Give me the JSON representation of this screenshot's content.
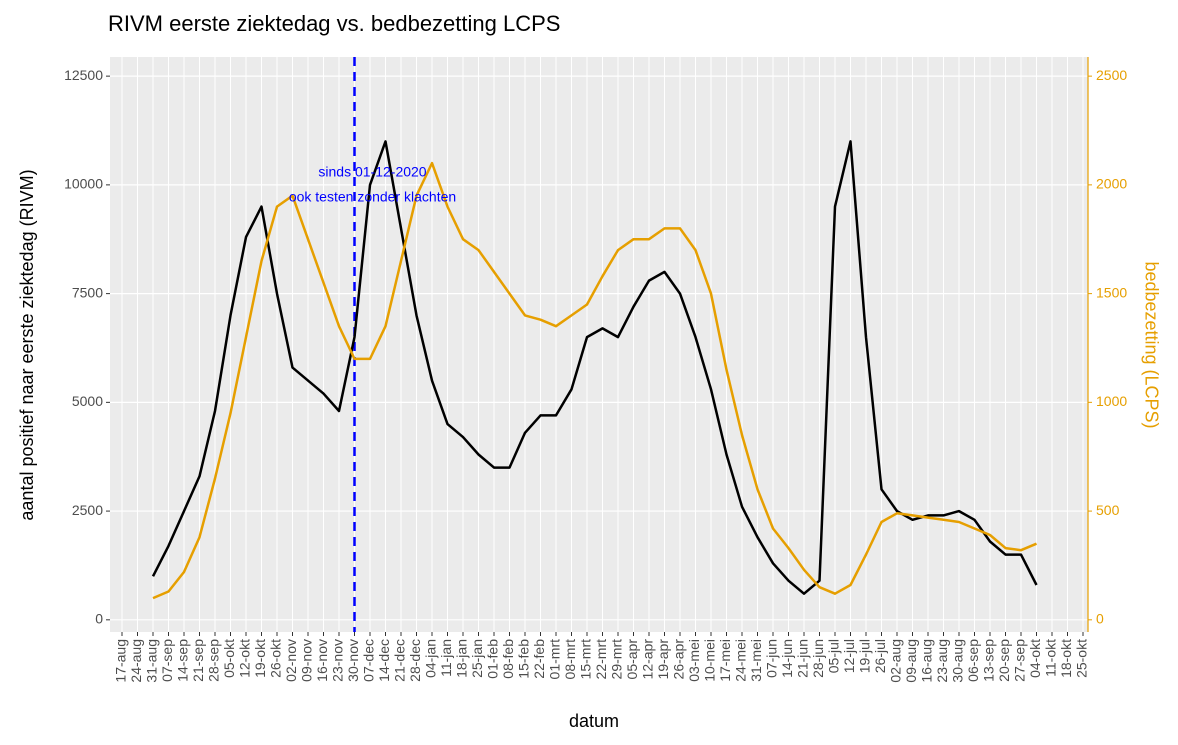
{
  "chart_data": {
    "type": "line",
    "title": "RIVM eerste ziektedag vs. bedbezetting LCPS",
    "x_label": "datum",
    "y_label": "aantal positief naar eerste ziektedag (RIVM)",
    "y2_label": "bedbezetting (LCPS)",
    "categories": [
      "17-aug",
      "24-aug",
      "31-aug",
      "07-sep",
      "14-sep",
      "21-sep",
      "28-sep",
      "05-okt",
      "12-okt",
      "19-okt",
      "26-okt",
      "02-nov",
      "09-nov",
      "16-nov",
      "23-nov",
      "30-nov",
      "07-dec",
      "14-dec",
      "21-dec",
      "28-dec",
      "04-jan",
      "11-jan",
      "18-jan",
      "25-jan",
      "01-feb",
      "08-feb",
      "15-feb",
      "22-feb",
      "01-mrt",
      "08-mrt",
      "15-mrt",
      "22-mrt",
      "29-mrt",
      "05-apr",
      "12-apr",
      "19-apr",
      "26-apr",
      "03-mei",
      "10-mei",
      "17-mei",
      "24-mei",
      "31-mei",
      "07-jun",
      "14-jun",
      "21-jun",
      "28-jun",
      "05-jul",
      "12-jul",
      "19-jul",
      "26-jul",
      "02-aug",
      "09-aug",
      "16-aug",
      "23-aug",
      "30-aug",
      "06-sep",
      "13-sep",
      "20-sep",
      "27-sep",
      "04-okt",
      "11-okt",
      "18-okt",
      "25-okt"
    ],
    "series": [
      {
        "color": "#000000",
        "axis": "y",
        "values": [
          null,
          null,
          1000,
          1700,
          2500,
          3300,
          4800,
          7000,
          8800,
          9500,
          7500,
          5800,
          5500,
          5200,
          4800,
          6500,
          10000,
          11000,
          9000,
          7000,
          5500,
          4500,
          4200,
          3800,
          3500,
          3500,
          4300,
          4700,
          4700,
          5300,
          6500,
          6700,
          6500,
          7200,
          7800,
          8000,
          7500,
          6500,
          5300,
          3800,
          2600,
          1900,
          1300,
          900,
          600,
          900,
          9500,
          11000,
          6500,
          3000,
          2500,
          2300,
          2400,
          2400,
          2500,
          2300,
          1800,
          1500,
          1500,
          800,
          null,
          null,
          null
        ]
      },
      {
        "color": "#E69F00",
        "axis": "y2",
        "values": [
          null,
          null,
          100,
          130,
          220,
          380,
          650,
          950,
          1300,
          1650,
          1900,
          1950,
          1750,
          1550,
          1350,
          1200,
          1200,
          1350,
          1650,
          1950,
          2100,
          1900,
          1750,
          1700,
          1600,
          1500,
          1400,
          1380,
          1350,
          1400,
          1450,
          1580,
          1700,
          1750,
          1750,
          1800,
          1800,
          1700,
          1500,
          1150,
          850,
          600,
          420,
          330,
          230,
          150,
          120,
          160,
          300,
          450,
          490,
          480,
          470,
          460,
          450,
          420,
          390,
          330,
          320,
          350,
          null,
          null,
          null
        ]
      }
    ],
    "ylim": [
      -280,
      12940
    ],
    "yticks": [
      0,
      2500,
      5000,
      7500,
      10000,
      12500
    ],
    "y2lim": [
      -56,
      2588
    ],
    "y2ticks": [
      0,
      500,
      1000,
      1500,
      2000,
      2500
    ],
    "y2_color": "#E69F00",
    "grid": true,
    "reference_line": {
      "x": "30-nov",
      "color": "#0000FF",
      "dashed": true
    },
    "annotations": [
      "sinds 01-12-2020",
      "ook testen zonder klachten"
    ],
    "annotation_color": "#0000FF"
  }
}
